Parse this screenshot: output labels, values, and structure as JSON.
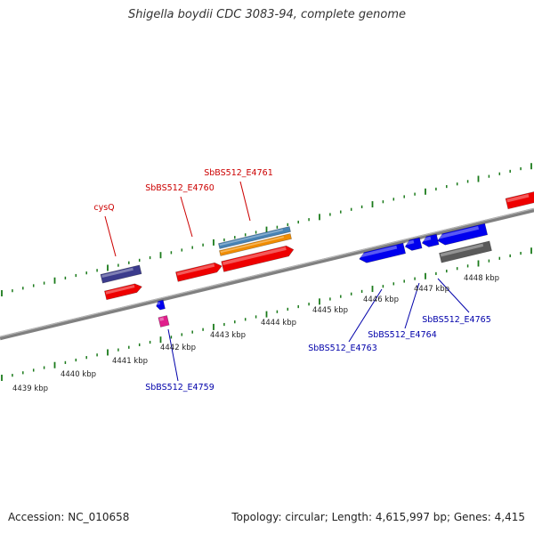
{
  "title": "Shigella boydii CDC 3083-94, complete genome",
  "accession": "Accession: NC_010658",
  "summary": "Topology: circular; Length: 4,615,997 bp; Genes: 4,415",
  "colors": {
    "backbone": "#808080",
    "tick": "#1a7a1a",
    "forward_label": "#cc0000",
    "reverse_label": "#0000aa",
    "red": "#ee0000",
    "blue": "#0000ee",
    "navy": "#3b3b8c",
    "gray": "#5a5a5a",
    "orange": "#f08c00",
    "steelblue": "#4682b4",
    "magenta": "#e01e8c"
  },
  "kbp_labels": [
    "4439 kbp",
    "4440 kbp",
    "4441 kbp",
    "4442 kbp",
    "4443 kbp",
    "4444 kbp",
    "4445 kbp",
    "4446 kbp",
    "4447 kbp",
    "4448 kbp"
  ],
  "gene_labels": {
    "forward": [
      "cysQ",
      "SbBS512_E4760",
      "SbBS512_E4761"
    ],
    "reverse": [
      "SbBS512_E4759",
      "SbBS512_E4763",
      "SbBS512_E4764",
      "SbBS512_E4765"
    ]
  }
}
